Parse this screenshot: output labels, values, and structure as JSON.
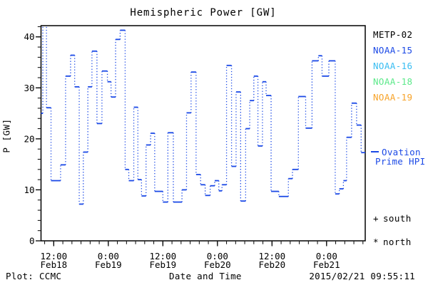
{
  "footer": {
    "plot_credit": "Plot: CCMC",
    "timestamp": "2015/02/21 09:55:11"
  },
  "legend": {
    "satellites": [
      {
        "label": "METP-02",
        "color": "#000000"
      },
      {
        "label": "NOAA-15",
        "color": "#1b49e6"
      },
      {
        "label": "NOAA-16",
        "color": "#38bdf2"
      },
      {
        "label": "NOAA-18",
        "color": "#5ce98a"
      },
      {
        "label": "NOAA-19",
        "color": "#f7a329"
      }
    ],
    "model": {
      "label_line1": "Ovation",
      "label_line2": "Prime HPI",
      "color": "#1b49e6"
    },
    "markers": [
      {
        "symbol": "+",
        "label": "south"
      },
      {
        "symbol": "*",
        "label": "north"
      }
    ]
  },
  "chart_data": {
    "type": "line",
    "subtype": "step",
    "title": "Hemispheric Power [GW]",
    "xlabel": "Date and Time",
    "ylabel": "P [GW]",
    "x_unit": "hours since 2015-02-18 00:00",
    "xlim": [
      9.2,
      80.5
    ],
    "ylim": [
      0,
      42.2
    ],
    "y_major_ticks": [
      0,
      10,
      20,
      30,
      40
    ],
    "y_minor_step": 2,
    "x_minor_step_hours": 2,
    "x_major_ticks": [
      {
        "t": 12,
        "time": "12:00",
        "date": "Feb18"
      },
      {
        "t": 24,
        "time": "0:00",
        "date": "Feb19"
      },
      {
        "t": 36,
        "time": "12:00",
        "date": "Feb19"
      },
      {
        "t": 48,
        "time": "0:00",
        "date": "Feb20"
      },
      {
        "t": 60,
        "time": "12:00",
        "date": "Feb20"
      },
      {
        "t": 72,
        "time": "0:00",
        "date": "Feb21"
      }
    ],
    "line_color": "#1b49e6",
    "grid": false,
    "legend_position": "right",
    "steps_format": [
      "t_start_h",
      "t_end_h",
      "P_GW"
    ],
    "steps": [
      [
        9.2,
        9.6,
        25.0
      ],
      [
        9.6,
        10.4,
        42.5
      ],
      [
        10.4,
        11.4,
        26.1
      ],
      [
        11.4,
        13.5,
        11.8
      ],
      [
        13.5,
        14.6,
        14.9
      ],
      [
        14.6,
        15.7,
        32.3
      ],
      [
        15.7,
        16.6,
        36.4
      ],
      [
        16.6,
        17.6,
        30.2
      ],
      [
        17.6,
        18.5,
        7.2
      ],
      [
        18.5,
        19.5,
        17.4
      ],
      [
        19.5,
        20.4,
        30.2
      ],
      [
        20.4,
        21.5,
        37.2
      ],
      [
        21.5,
        22.6,
        23.0
      ],
      [
        22.6,
        23.8,
        33.3
      ],
      [
        23.8,
        24.6,
        31.2
      ],
      [
        24.6,
        25.6,
        28.2
      ],
      [
        25.6,
        26.6,
        39.5
      ],
      [
        26.6,
        27.7,
        41.3
      ],
      [
        27.7,
        28.5,
        14.0
      ],
      [
        28.5,
        29.6,
        11.8
      ],
      [
        29.6,
        30.5,
        26.2
      ],
      [
        30.5,
        31.3,
        12.0
      ],
      [
        31.3,
        32.3,
        8.8
      ],
      [
        32.3,
        33.3,
        18.8
      ],
      [
        33.3,
        34.2,
        21.1
      ],
      [
        34.2,
        36.0,
        9.7
      ],
      [
        36.0,
        37.1,
        7.6
      ],
      [
        37.1,
        38.3,
        21.2
      ],
      [
        38.3,
        40.2,
        7.6
      ],
      [
        40.2,
        41.2,
        10.0
      ],
      [
        41.2,
        42.2,
        25.1
      ],
      [
        42.2,
        43.3,
        33.1
      ],
      [
        43.3,
        44.3,
        13.0
      ],
      [
        44.3,
        45.3,
        11.0
      ],
      [
        45.3,
        46.4,
        8.9
      ],
      [
        46.4,
        47.4,
        10.8
      ],
      [
        47.4,
        48.3,
        11.8
      ],
      [
        48.3,
        49.0,
        9.8
      ],
      [
        49.0,
        50.0,
        11.0
      ],
      [
        50.0,
        51.1,
        34.4
      ],
      [
        51.1,
        52.1,
        14.6
      ],
      [
        52.1,
        53.1,
        29.2
      ],
      [
        53.1,
        54.2,
        7.8
      ],
      [
        54.2,
        55.1,
        22.0
      ],
      [
        55.1,
        56.0,
        27.5
      ],
      [
        56.0,
        56.9,
        32.3
      ],
      [
        56.9,
        57.9,
        18.6
      ],
      [
        57.9,
        58.7,
        31.2
      ],
      [
        58.7,
        59.8,
        28.5
      ],
      [
        59.8,
        61.5,
        9.7
      ],
      [
        61.5,
        63.6,
        8.7
      ],
      [
        63.6,
        64.5,
        12.2
      ],
      [
        64.5,
        65.8,
        14.0
      ],
      [
        65.8,
        67.4,
        28.3
      ],
      [
        67.4,
        68.8,
        22.1
      ],
      [
        68.8,
        70.2,
        35.3
      ],
      [
        70.2,
        71.0,
        36.3
      ],
      [
        71.0,
        72.5,
        32.3
      ],
      [
        72.5,
        73.9,
        35.3
      ],
      [
        73.9,
        74.8,
        9.2
      ],
      [
        74.8,
        75.7,
        10.2
      ],
      [
        75.7,
        76.4,
        11.8
      ],
      [
        76.4,
        77.5,
        20.3
      ],
      [
        77.5,
        78.6,
        27.0
      ],
      [
        78.6,
        79.6,
        22.7
      ],
      [
        79.6,
        80.5,
        17.3
      ]
    ]
  }
}
